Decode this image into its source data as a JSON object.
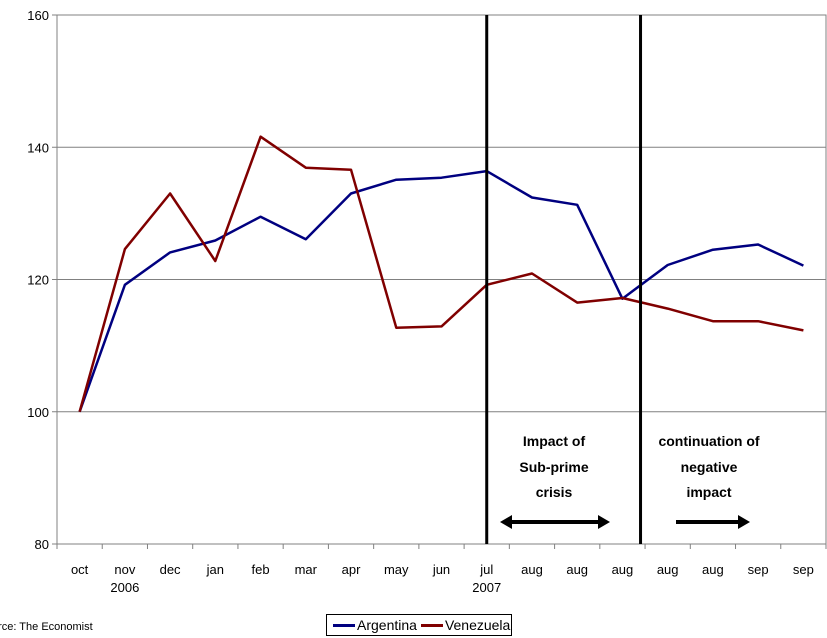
{
  "chart_data": {
    "type": "line",
    "categories": [
      "oct",
      "nov",
      "dec",
      "jan",
      "feb",
      "mar",
      "apr",
      "may",
      "jun",
      "jul",
      "aug",
      "aug",
      "aug",
      "aug",
      "aug",
      "sep",
      "sep"
    ],
    "year_labels": [
      {
        "text": "2006",
        "category_index": 1
      },
      {
        "text": "2007",
        "category_index": 9
      }
    ],
    "ylim": [
      80,
      160
    ],
    "yticks": [
      "80",
      "100",
      "120",
      "140",
      "160"
    ],
    "grid": true,
    "series": [
      {
        "name": "Argentina",
        "color": "#000080",
        "values": [
          100,
          119.2,
          124.1,
          125.9,
          129.5,
          126.1,
          133.0,
          135.1,
          135.4,
          136.4,
          132.4,
          131.3,
          117.1,
          122.2,
          124.5,
          125.3,
          122.1
        ]
      },
      {
        "name": "Venezuela",
        "color": "#800000",
        "values": [
          100,
          124.6,
          133.0,
          122.8,
          141.6,
          136.9,
          136.6,
          112.7,
          112.9,
          119.2,
          120.9,
          116.5,
          117.2,
          115.6,
          113.7,
          113.7,
          112.3
        ]
      }
    ],
    "vertical_markers": [
      9,
      12.4
    ],
    "annotations": [
      {
        "lines": [
          "Impact of",
          "Sub-prime",
          "crisis"
        ],
        "arrow": "double"
      },
      {
        "lines": [
          "continuation of",
          "negative",
          "impact"
        ],
        "arrow": "right"
      }
    ],
    "legend_position": "bottom",
    "source": "urce: The Economist"
  }
}
